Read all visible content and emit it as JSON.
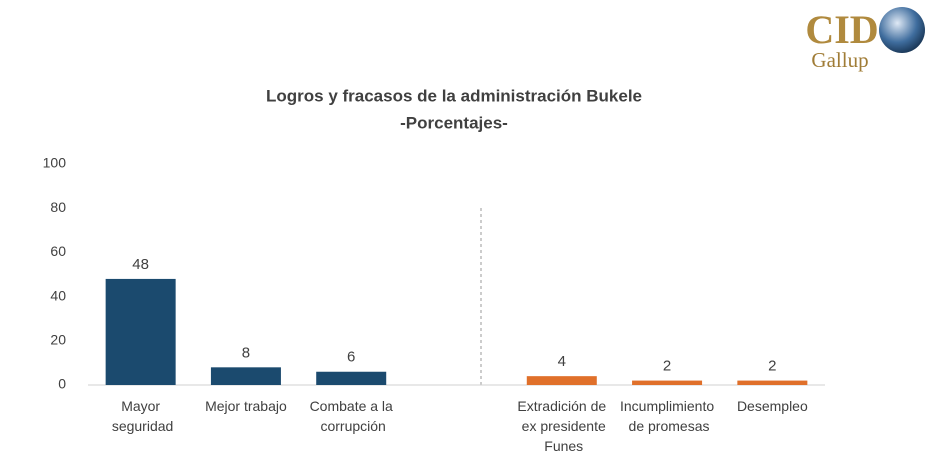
{
  "logo": {
    "name": "CID",
    "tagline": "Gallup"
  },
  "chart_data": {
    "type": "bar",
    "title": "Logros y fracasos de la administración Bukele",
    "subtitle": "-Porcentajes-",
    "categories": [
      "Mayor seguridad",
      "Mejor trabajo",
      "Combate a la corrupción",
      null,
      "Extradición de ex presidente Funes",
      "Incumplimiento de promesas",
      "Desempleo"
    ],
    "values": [
      48,
      8,
      6,
      null,
      4,
      2,
      2
    ],
    "colors": [
      "#1b4a6e",
      "#1b4a6e",
      "#1b4a6e",
      null,
      "#e0702a",
      "#e0702a",
      "#e0702a"
    ],
    "ylim": [
      0,
      100
    ],
    "yticks": [
      0,
      20,
      40,
      60,
      80,
      100
    ],
    "grid": false
  }
}
